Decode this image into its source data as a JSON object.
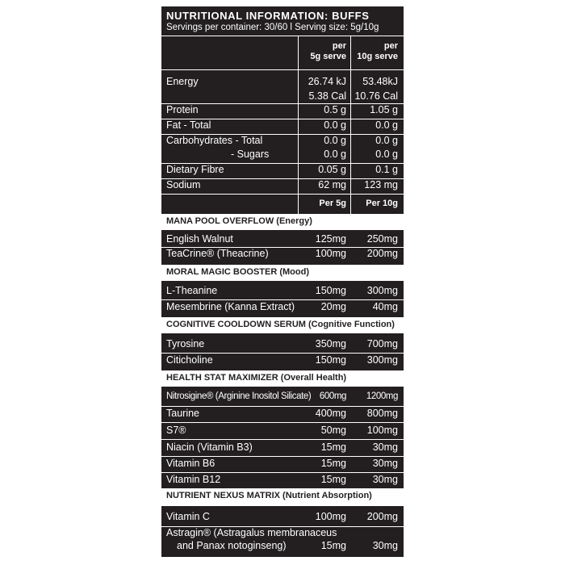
{
  "header": {
    "title": "NUTRITIONAL INFORMATION: BUFFS",
    "servings": "Servings per container: 30/60 l Serving  size: 5g/10g"
  },
  "nutrition_columns": {
    "col1_line1": "per",
    "col1_line2": "5g serve",
    "col2_line1": "per",
    "col2_line2": "10g serve"
  },
  "nutrition": {
    "energy_label": "Energy",
    "energy_kj_5g": "26.74 kJ",
    "energy_kj_10g": "53.48kJ",
    "energy_cal_5g": "5.38 Cal",
    "energy_cal_10g": "10.76 Cal",
    "rows": [
      {
        "label": "Protein",
        "v1": "0.5 g",
        "v2": "1.05 g"
      },
      {
        "label": "Fat - Total",
        "v1": "0.0 g",
        "v2": "0.0 g"
      },
      {
        "label": "Carbohydrates - Total",
        "v1": "0.0 g",
        "v2": "0.0 g"
      },
      {
        "label": "- Sugars",
        "v1": "0.0 g",
        "v2": "0.0 g"
      },
      {
        "label": "Dietary Fibre",
        "v1": "0.05 g",
        "v2": "0.1 g"
      },
      {
        "label": "Sodium",
        "v1": "62 mg",
        "v2": "123 mg"
      }
    ]
  },
  "per_header": {
    "col1": "Per 5g",
    "col2": "Per 10g"
  },
  "sections": [
    {
      "title": "MANA POOL OVERFLOW",
      "subtitle": " (Energy)",
      "rows": [
        {
          "label": "English Walnut",
          "v1": "125mg",
          "v2": "250mg"
        },
        {
          "label": "TeaCrine® (Theacrine)",
          "v1": "100mg",
          "v2": "200mg"
        }
      ]
    },
    {
      "title": "MORAL MAGIC BOOSTER",
      "subtitle": " (Mood)",
      "rows": [
        {
          "label": "L-Theanine",
          "v1": "150mg",
          "v2": "300mg"
        },
        {
          "label": "Mesembrine (Kanna Extract)",
          "v1": "20mg",
          "v2": "40mg"
        }
      ]
    },
    {
      "title": "COGNITIVE COOLDOWN SERUM",
      "subtitle": " (Cognitive Function)",
      "rows": [
        {
          "label": "Tyrosine",
          "v1": "350mg",
          "v2": "700mg"
        },
        {
          "label": "Citicholine",
          "v1": "150mg",
          "v2": "300mg"
        }
      ]
    },
    {
      "title": "HEALTH STAT MAXIMIZER",
      "subtitle": " (Overall Health)",
      "rows": [
        {
          "label": "Nitrosigine® (Arginine Inositol Silicate)",
          "v1": "600mg",
          "v2": "1200mg"
        },
        {
          "label": "Taurine",
          "v1": "400mg",
          "v2": "800mg"
        },
        {
          "label": "S7®",
          "v1": "50mg",
          "v2": "100mg"
        },
        {
          "label": "Niacin (Vitamin B3)",
          "v1": "15mg",
          "v2": "30mg"
        },
        {
          "label": "Vitamin B6",
          "v1": "15mg",
          "v2": "30mg"
        },
        {
          "label": "Vitamin B12",
          "v1": "15mg",
          "v2": "30mg"
        }
      ]
    },
    {
      "title": "NUTRIENT NEXUS MATRIX",
      "subtitle": " (Nutrient Absorption)",
      "rows": [
        {
          "label": "Vitamin C",
          "v1": "100mg",
          "v2": "200mg"
        }
      ],
      "astragin": {
        "line1": "Astragin® (Astragalus membranaceus",
        "line2": "and Panax notoginseng)",
        "v1": "15mg",
        "v2": "30mg"
      }
    }
  ]
}
